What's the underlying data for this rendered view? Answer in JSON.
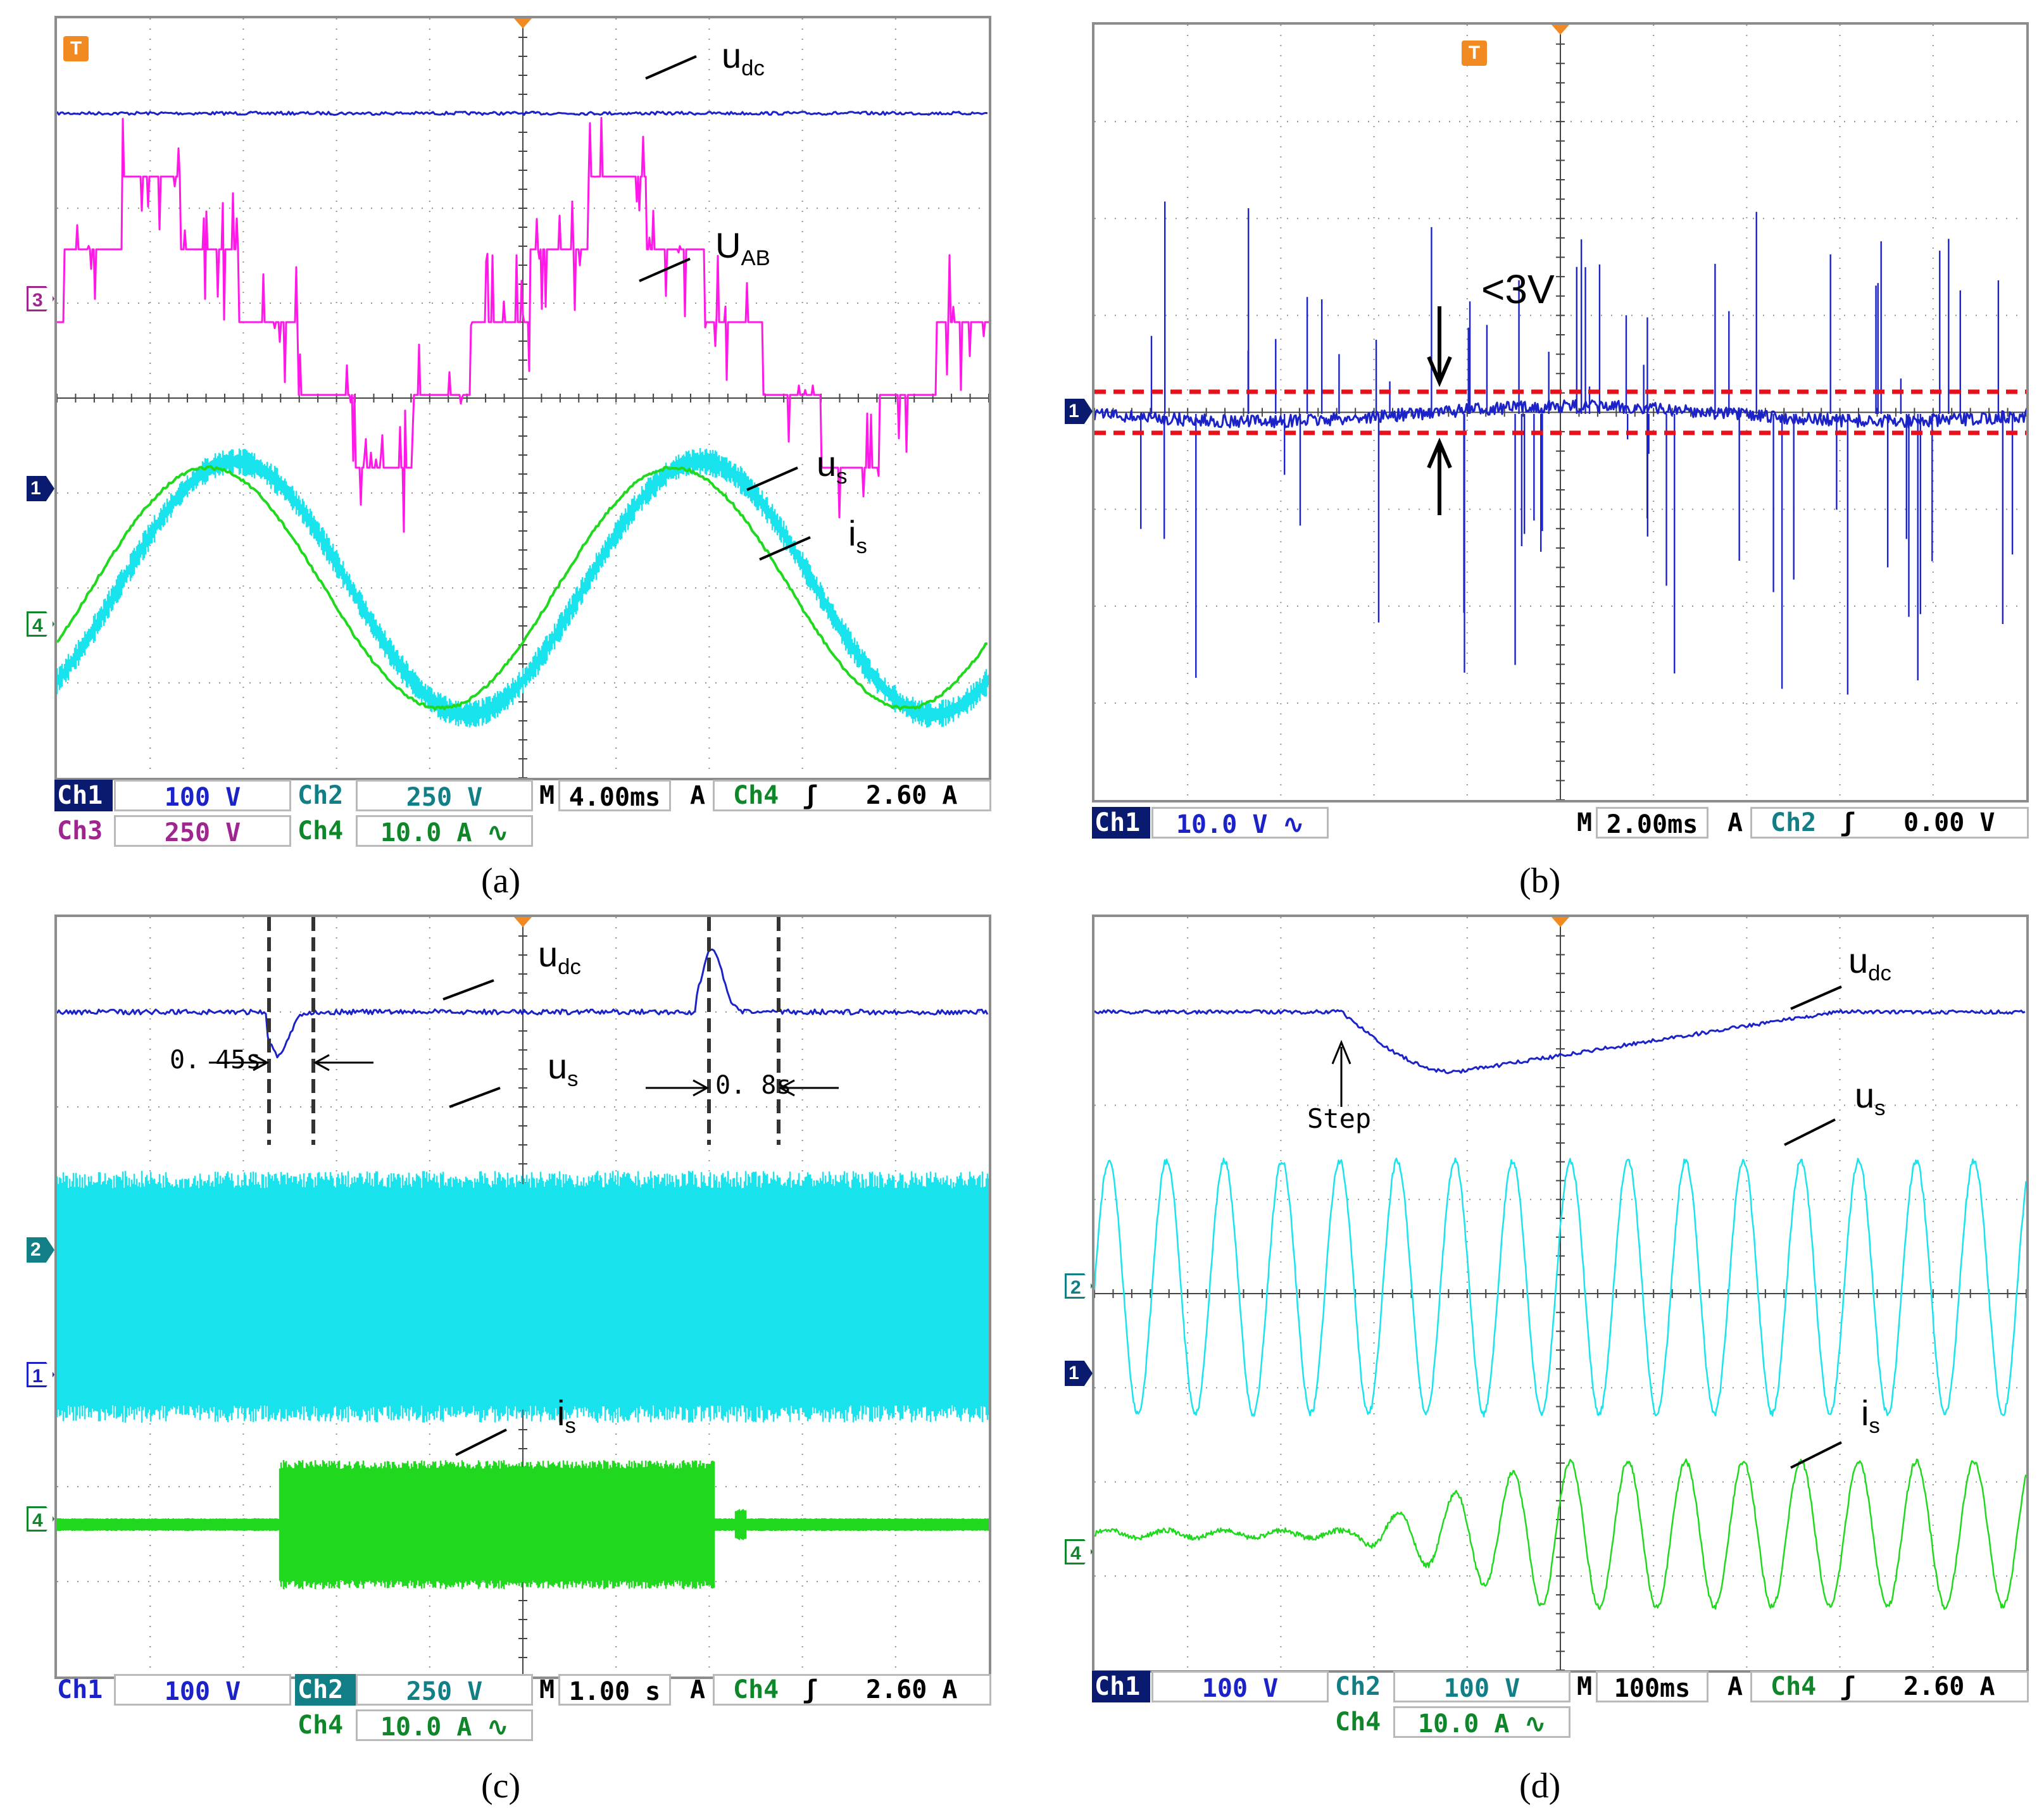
{
  "panels": [
    {
      "id": "a",
      "caption": "(a)",
      "trace_labels": {
        "udc_main": "u",
        "udc_sub": "dc",
        "uab_main": "U",
        "uab_sub": "AB",
        "us_main": "u",
        "us_sub": "s",
        "is_main": "i",
        "is_sub": "s"
      },
      "markers": [
        "3",
        "1",
        "4"
      ],
      "trigger": "T",
      "status": {
        "ch1": "Ch1",
        "ch1_scale": "100 V",
        "ch2": "Ch2",
        "ch2_scale": "250 V",
        "ch3": "Ch3",
        "ch3_scale": "250 V",
        "ch4": "Ch4",
        "ch4_scale": "10.0 A ∿",
        "m": "M",
        "timebase": "4.00ms",
        "a": "A",
        "trig_ch": "Ch4",
        "trig_slope": "ʃ",
        "trig_level": "2.60 A"
      }
    },
    {
      "id": "b",
      "caption": "(b)",
      "annotation": "<3V",
      "markers": [
        "1"
      ],
      "trigger": "T",
      "status": {
        "ch1": "Ch1",
        "ch1_scale": "10.0 V ∿",
        "m": "M",
        "timebase": "2.00ms",
        "a": "A",
        "trig_ch": "Ch2",
        "trig_slope": "ʃ",
        "trig_level": "0.00 V"
      }
    },
    {
      "id": "c",
      "caption": "(c)",
      "trace_labels": {
        "udc_main": "u",
        "udc_sub": "dc",
        "us_main": "u",
        "us_sub": "s",
        "is_main": "i",
        "is_sub": "s"
      },
      "interval_1": "0. 45s",
      "interval_2": "0. 8s",
      "markers": [
        "2",
        "1",
        "4"
      ],
      "status": {
        "ch1": "Ch1",
        "ch1_scale": "100 V",
        "ch2": "Ch2",
        "ch2_scale": "250 V",
        "ch4": "Ch4",
        "ch4_scale": "10.0 A ∿",
        "m": "M",
        "timebase": "1.00 s",
        "a": "A",
        "trig_ch": "Ch4",
        "trig_slope": "ʃ",
        "trig_level": "2.60 A"
      }
    },
    {
      "id": "d",
      "caption": "(d)",
      "trace_labels": {
        "udc_main": "u",
        "udc_sub": "dc",
        "us_main": "u",
        "us_sub": "s",
        "is_main": "i",
        "is_sub": "s"
      },
      "step_label": "Step",
      "markers": [
        "2",
        "1",
        "4"
      ],
      "status": {
        "ch1": "Ch1",
        "ch1_scale": "100 V",
        "ch2": "Ch2",
        "ch2_scale": "100 V",
        "ch4": "Ch4",
        "ch4_scale": "10.0 A ∿",
        "m": "M",
        "timebase": "100ms",
        "a": "A",
        "trig_ch": "Ch4",
        "trig_slope": "ʃ",
        "trig_level": "2.60 A"
      }
    }
  ],
  "colors": {
    "ch1": "#1b23c8",
    "ch1_dark": "#0a1a6e",
    "ch2": "#19e3ec",
    "ch2_dark": "#127f86",
    "ch3": "#ff18e6",
    "ch3_dark": "#a0268f",
    "ch4": "#20d81e",
    "ch4_dark": "#10862a",
    "grid": "#7a7a7a",
    "limit_lines": "#e8101a"
  },
  "chart_data": [
    {
      "panel": "a",
      "type": "line",
      "divisions": {
        "x": 10,
        "y": 8
      },
      "timebase_per_div": "4.00ms",
      "series": [
        {
          "name": "u_dc",
          "waveform": "dc",
          "level_div": 6.98
        },
        {
          "name": "U_AB",
          "waveform": "multilevel-staircase",
          "periods_on_screen": 2
        },
        {
          "name": "u_s",
          "waveform": "sine",
          "periods_on_screen": 2
        },
        {
          "name": "i_s",
          "waveform": "sine",
          "periods_on_screen": 2
        }
      ]
    },
    {
      "panel": "b",
      "type": "line",
      "divisions": {
        "x": 10,
        "y": 8
      },
      "timebase_per_div": "2.00ms",
      "series": [
        {
          "name": "ch1",
          "waveform": "ac ripple with spikes",
          "band_peak_to_peak_V": 3
        }
      ]
    },
    {
      "panel": "c",
      "type": "line",
      "divisions": {
        "x": 10,
        "y": 8
      },
      "timebase_per_div": "1.00 s",
      "events": [
        {
          "type": "dip",
          "series": "u_dc",
          "duration_s": 0.45
        },
        {
          "type": "overshoot",
          "series": "u_dc",
          "duration_s": 0.8
        }
      ],
      "series": [
        {
          "name": "u_dc",
          "waveform": "dc with transients"
        },
        {
          "name": "u_s",
          "waveform": "dense ac envelope"
        },
        {
          "name": "i_s",
          "waveform": "dense ac envelope, load applied then removed"
        }
      ]
    },
    {
      "panel": "d",
      "type": "line",
      "divisions": {
        "x": 10,
        "y": 8
      },
      "timebase_per_div": "100ms",
      "series": [
        {
          "name": "u_dc",
          "waveform": "dc with dip after step"
        },
        {
          "name": "u_s",
          "waveform": "sine"
        },
        {
          "name": "i_s",
          "waveform": "sine with growing amplitude after step"
        }
      ]
    }
  ]
}
